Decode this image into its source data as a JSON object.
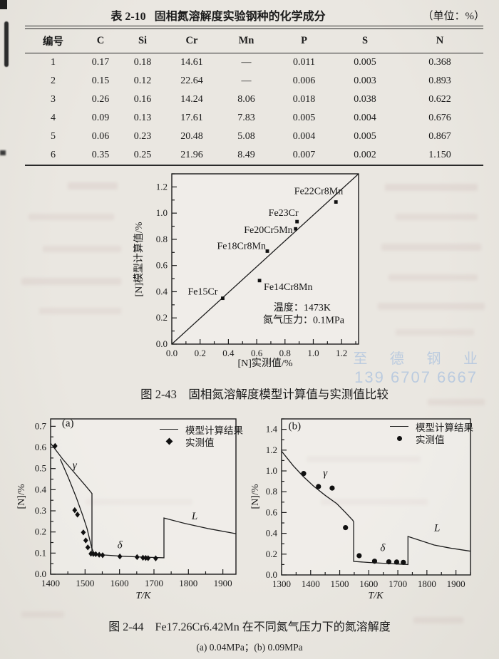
{
  "page": {
    "table_title": {
      "tag": "表 2-10",
      "text": "固相氮溶解度实验钢种的化学成分",
      "unit": "（单位：%）"
    },
    "table": {
      "columns": [
        "编号",
        "C",
        "Si",
        "Cr",
        "Mn",
        "P",
        "S",
        "N"
      ],
      "rows": [
        [
          "1",
          "0.17",
          "0.18",
          "14.61",
          "—",
          "0.011",
          "0.005",
          "0.368"
        ],
        [
          "2",
          "0.15",
          "0.12",
          "22.64",
          "—",
          "0.006",
          "0.003",
          "0.893"
        ],
        [
          "3",
          "0.26",
          "0.16",
          "14.24",
          "8.06",
          "0.018",
          "0.038",
          "0.622"
        ],
        [
          "4",
          "0.09",
          "0.13",
          "17.61",
          "7.83",
          "0.005",
          "0.004",
          "0.676"
        ],
        [
          "5",
          "0.06",
          "0.23",
          "20.48",
          "5.08",
          "0.004",
          "0.005",
          "0.867"
        ],
        [
          "6",
          "0.35",
          "0.25",
          "21.96",
          "8.49",
          "0.007",
          "0.002",
          "1.150"
        ]
      ]
    },
    "fig43_caption": "图 2-43　固相氮溶解度模型计算值与实测值比较",
    "fig44_caption": "图 2-44　Fe17.26Cr6.42Mn 在不同氮气压力下的氮溶解度",
    "fig44_subcaption": "(a) 0.04MPa；(b) 0.09MPa",
    "watermark": {
      "line1": "至 德 钢 业",
      "line2": "139 6707 6667",
      "color": "#9fbbdf"
    },
    "legend": {
      "line_label": "模型计算结果",
      "marker_label": "实测值"
    }
  },
  "chart_data": [
    {
      "id": "fig-2-43",
      "type": "scatter",
      "title": "固相氮溶解度模型计算值与实测值比较",
      "xlabel": "[N]实测值/%",
      "ylabel": "[N]模型计算值/%",
      "xlim": [
        0,
        1.32
      ],
      "ylim": [
        0,
        1.3
      ],
      "xticks": [
        0,
        0.2,
        0.4,
        0.6,
        0.8,
        1.0,
        1.2
      ],
      "yticks": [
        0,
        0.2,
        0.4,
        0.6,
        0.8,
        1.0,
        1.2
      ],
      "x_decimals": 1,
      "y_decimals": 1,
      "lines": [
        {
          "name": "identity-line",
          "points": [
            [
              0,
              0
            ],
            [
              1.32,
              1.3
            ]
          ]
        }
      ],
      "series": [
        {
          "name": "alloy-points",
          "marker": "square",
          "points": [
            {
              "x": 0.36,
              "y": 0.35,
              "label": "Fe15Cr",
              "anchor": "end",
              "dx": -7,
              "dy": -5
            },
            {
              "x": 0.62,
              "y": 0.485,
              "label": "Fe14Cr8Mn",
              "anchor": "start",
              "dx": 6,
              "dy": 13
            },
            {
              "x": 0.675,
              "y": 0.71,
              "label": "Fe18Cr8Mn",
              "anchor": "end",
              "dx": -2,
              "dy": -3
            },
            {
              "x": 0.875,
              "y": 0.88,
              "label": "Fe20Cr5Mn",
              "anchor": "end",
              "dx": -4,
              "dy": 6
            },
            {
              "x": 0.885,
              "y": 0.935,
              "label": "Fe23Cr",
              "anchor": "end",
              "dx": 2,
              "dy": -8
            },
            {
              "x": 1.16,
              "y": 1.085,
              "label": "Fe22Cr8Mn",
              "anchor": "end",
              "dx": 10,
              "dy": -11
            }
          ]
        }
      ],
      "annotations": [
        {
          "text": "温度：1473K",
          "x": 0.72,
          "y": 0.255,
          "anchor": "start",
          "size": 14
        },
        {
          "text": "氮气压力：0.1MPa",
          "x": 0.645,
          "y": 0.16,
          "anchor": "start",
          "size": 14
        }
      ]
    },
    {
      "id": "fig-2-44a",
      "type": "line",
      "panel": "(a)",
      "pressure": "0.04MPa",
      "xlabel": "T/K",
      "ylabel": "[N]/%",
      "xlim": [
        1400,
        1938
      ],
      "ylim": [
        0,
        0.735
      ],
      "xticks": [
        1400,
        1500,
        1600,
        1700,
        1800,
        1900
      ],
      "yticks": [
        0,
        0.1,
        0.2,
        0.3,
        0.4,
        0.5,
        0.6,
        0.7
      ],
      "x_decimals": 0,
      "y_decimals": 1,
      "lines": [
        {
          "name": "model-line",
          "points": [
            [
              1400,
              0.62
            ],
            [
              1435,
              0.545
            ],
            [
              1468,
              0.482
            ],
            [
              1498,
              0.425
            ],
            [
              1515,
              0.392
            ],
            [
              1520,
              0.382
            ],
            [
              1520,
              0.097
            ],
            [
              1555,
              0.091
            ],
            [
              1610,
              0.085
            ],
            [
              1670,
              0.081
            ],
            [
              1729,
              0.078
            ],
            [
              1729,
              0.266
            ],
            [
              1790,
              0.24
            ],
            [
              1860,
              0.215
            ],
            [
              1938,
              0.192
            ]
          ]
        },
        {
          "name": "measured-trend-line",
          "points": [
            [
              1428,
              0.545
            ],
            [
              1452,
              0.455
            ],
            [
              1474,
              0.365
            ],
            [
              1494,
              0.275
            ],
            [
              1506,
              0.215
            ],
            [
              1514,
              0.16
            ],
            [
              1520,
              0.122
            ],
            [
              1525,
              0.1
            ]
          ]
        }
      ],
      "series": [
        {
          "name": "measured-points",
          "marker": "diamond",
          "points": [
            [
              1413,
              0.607
            ],
            [
              1470,
              0.303
            ],
            [
              1478,
              0.282
            ],
            [
              1495,
              0.198
            ],
            [
              1502,
              0.16
            ],
            [
              1508,
              0.127
            ],
            [
              1517,
              0.097
            ],
            [
              1524,
              0.096
            ],
            [
              1531,
              0.095
            ],
            [
              1541,
              0.092
            ],
            [
              1551,
              0.09
            ],
            [
              1601,
              0.084
            ],
            [
              1651,
              0.081
            ],
            [
              1668,
              0.078
            ],
            [
              1676,
              0.077
            ],
            [
              1683,
              0.076
            ],
            [
              1705,
              0.075
            ]
          ]
        }
      ],
      "annotations": [
        {
          "text": "(a)",
          "x": 1450,
          "y": 0.7,
          "size": 15
        },
        {
          "text": "γ",
          "x": 1470,
          "y": 0.5,
          "italic": true,
          "size": 15
        },
        {
          "text": "δ",
          "x": 1601,
          "y": 0.123,
          "italic": true,
          "size": 15
        },
        {
          "text": "L",
          "x": 1818,
          "y": 0.26,
          "italic": true,
          "size": 15
        }
      ]
    },
    {
      "id": "fig-2-44b",
      "type": "line",
      "panel": "(b)",
      "pressure": "0.09MPa",
      "xlabel": "T/K",
      "ylabel": "[N]/%",
      "xlim": [
        1300,
        1950
      ],
      "ylim": [
        0,
        1.5
      ],
      "xticks": [
        1300,
        1400,
        1500,
        1600,
        1700,
        1800,
        1900
      ],
      "yticks": [
        0,
        0.2,
        0.4,
        0.6,
        0.8,
        1.0,
        1.2,
        1.4
      ],
      "x_decimals": 0,
      "y_decimals": 1,
      "lines": [
        {
          "name": "model-line",
          "points": [
            [
              1300,
              1.19
            ],
            [
              1340,
              1.05
            ],
            [
              1375,
              0.945
            ],
            [
              1410,
              0.855
            ],
            [
              1450,
              0.765
            ],
            [
              1490,
              0.685
            ],
            [
              1520,
              0.6
            ],
            [
              1545,
              0.525
            ],
            [
              1548,
              0.51
            ],
            [
              1548,
              0.13
            ],
            [
              1600,
              0.12
            ],
            [
              1650,
              0.112
            ],
            [
              1700,
              0.105
            ],
            [
              1735,
              0.1
            ],
            [
              1735,
              0.37
            ],
            [
              1825,
              0.288
            ],
            [
              1880,
              0.258
            ],
            [
              1950,
              0.228
            ]
          ]
        }
      ],
      "series": [
        {
          "name": "measured-points",
          "marker": "circle",
          "points": [
            [
              1376,
              0.975
            ],
            [
              1427,
              0.85
            ],
            [
              1474,
              0.835
            ],
            [
              1520,
              0.455
            ],
            [
              1567,
              0.185
            ],
            [
              1620,
              0.132
            ],
            [
              1669,
              0.126
            ],
            [
              1696,
              0.124
            ],
            [
              1719,
              0.121
            ]
          ]
        }
      ],
      "annotations": [
        {
          "text": "(b)",
          "x": 1345,
          "y": 1.4,
          "size": 15
        },
        {
          "text": "γ",
          "x": 1450,
          "y": 0.95,
          "italic": true,
          "size": 15
        },
        {
          "text": "δ",
          "x": 1648,
          "y": 0.23,
          "italic": true,
          "size": 15
        },
        {
          "text": "L",
          "x": 1835,
          "y": 0.42,
          "italic": true,
          "size": 15
        }
      ]
    }
  ]
}
